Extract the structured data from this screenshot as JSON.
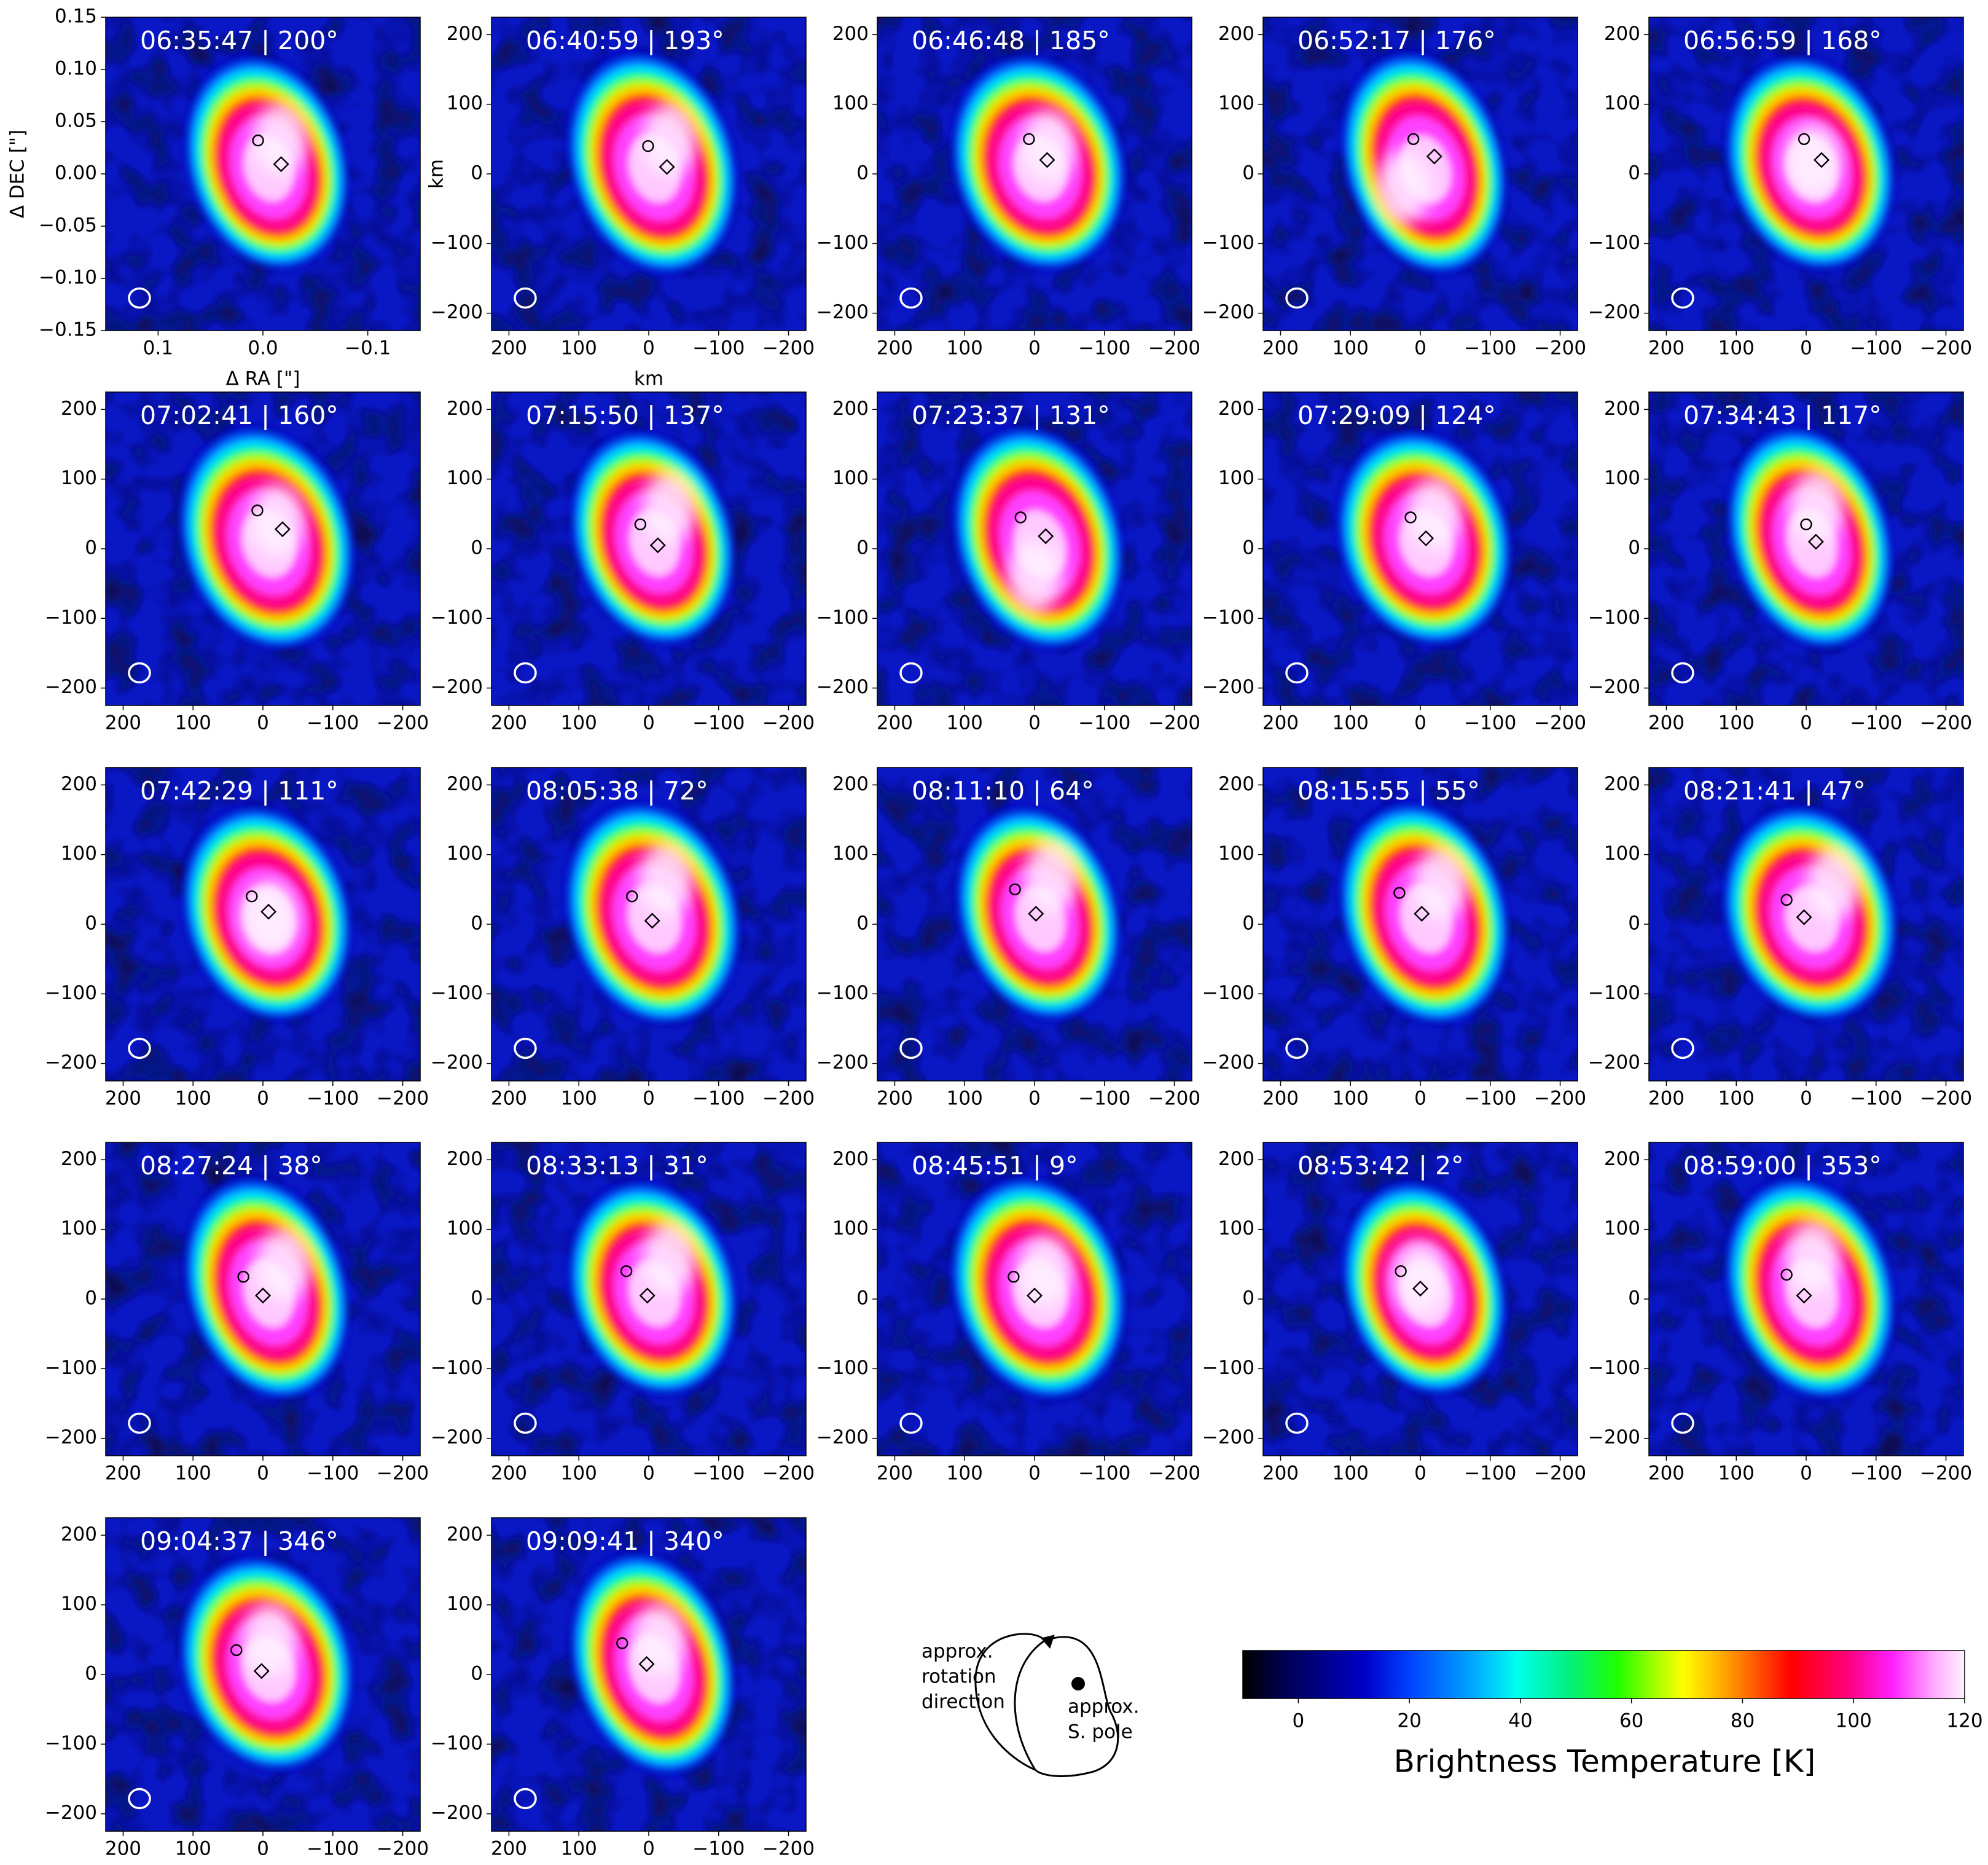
{
  "chart_data": {
    "type": "heatmap",
    "panels": [
      {
        "time": "06:35:47",
        "angle": "200°",
        "circle_km": [
          7,
          48
        ],
        "diamond_km": [
          -26,
          14
        ],
        "hotspot_km": [
          -25,
          50
        ]
      },
      {
        "time": "06:40:59",
        "angle": "193°",
        "circle_km": [
          1,
          40
        ],
        "diamond_km": [
          -26,
          10
        ],
        "hotspot_km": [
          -30,
          50
        ]
      },
      {
        "time": "06:46:48",
        "angle": "185°",
        "circle_km": [
          8,
          50
        ],
        "diamond_km": [
          -18,
          20
        ],
        "hotspot_km": [
          -20,
          40
        ]
      },
      {
        "time": "06:52:17",
        "angle": "176°",
        "circle_km": [
          10,
          50
        ],
        "diamond_km": [
          -20,
          25
        ],
        "hotspot_km": [
          25,
          -20
        ]
      },
      {
        "time": "06:56:59",
        "angle": "168°",
        "circle_km": [
          3,
          50
        ],
        "diamond_km": [
          -22,
          20
        ],
        "hotspot_km": [
          -10,
          20
        ]
      },
      {
        "time": "07:02:41",
        "angle": "160°",
        "circle_km": [
          8,
          55
        ],
        "diamond_km": [
          -28,
          28
        ],
        "hotspot_km": [
          -20,
          40
        ]
      },
      {
        "time": "07:15:50",
        "angle": "137°",
        "circle_km": [
          12,
          35
        ],
        "diamond_km": [
          -13,
          5
        ],
        "hotspot_km": [
          -30,
          60
        ]
      },
      {
        "time": "07:23:37",
        "angle": "131°",
        "circle_km": [
          20,
          45
        ],
        "diamond_km": [
          -16,
          18
        ],
        "hotspot_km": [
          0,
          -40
        ]
      },
      {
        "time": "07:29:09",
        "angle": "124°",
        "circle_km": [
          14,
          45
        ],
        "diamond_km": [
          -8,
          15
        ],
        "hotspot_km": [
          -20,
          50
        ]
      },
      {
        "time": "07:34:43",
        "angle": "117°",
        "circle_km": [
          0,
          35
        ],
        "diamond_km": [
          -14,
          10
        ],
        "hotspot_km": [
          -15,
          60
        ]
      },
      {
        "time": "07:42:29",
        "angle": "111°",
        "circle_km": [
          16,
          40
        ],
        "diamond_km": [
          -8,
          18
        ],
        "hotspot_km": [
          -10,
          10
        ]
      },
      {
        "time": "08:05:38",
        "angle": "72°",
        "circle_km": [
          24,
          40
        ],
        "diamond_km": [
          -5,
          5
        ],
        "hotspot_km": [
          -25,
          65
        ]
      },
      {
        "time": "08:11:10",
        "angle": "64°",
        "circle_km": [
          28,
          50
        ],
        "diamond_km": [
          -2,
          15
        ],
        "hotspot_km": [
          -25,
          70
        ]
      },
      {
        "time": "08:15:55",
        "angle": "55°",
        "circle_km": [
          30,
          45
        ],
        "diamond_km": [
          -2,
          15
        ],
        "hotspot_km": [
          -30,
          60
        ]
      },
      {
        "time": "08:21:41",
        "angle": "47°",
        "circle_km": [
          28,
          35
        ],
        "diamond_km": [
          3,
          10
        ],
        "hotspot_km": [
          -40,
          60
        ]
      },
      {
        "time": "08:27:24",
        "angle": "38°",
        "circle_km": [
          28,
          32
        ],
        "diamond_km": [
          0,
          5
        ],
        "hotspot_km": [
          -30,
          50
        ]
      },
      {
        "time": "08:33:13",
        "angle": "31°",
        "circle_km": [
          32,
          40
        ],
        "diamond_km": [
          2,
          5
        ],
        "hotspot_km": [
          -30,
          60
        ]
      },
      {
        "time": "08:45:51",
        "angle": "9°",
        "circle_km": [
          30,
          32
        ],
        "diamond_km": [
          0,
          5
        ],
        "hotspot_km": [
          -15,
          40
        ]
      },
      {
        "time": "08:53:42",
        "angle": "2°",
        "circle_km": [
          28,
          40
        ],
        "diamond_km": [
          0,
          15
        ],
        "hotspot_km": [
          0,
          30
        ]
      },
      {
        "time": "08:59:00",
        "angle": "353°",
        "circle_km": [
          28,
          35
        ],
        "diamond_km": [
          3,
          5
        ],
        "hotspot_km": [
          -10,
          60
        ]
      },
      {
        "time": "09:04:37",
        "angle": "346°",
        "circle_km": [
          38,
          35
        ],
        "diamond_km": [
          2,
          5
        ],
        "hotspot_km": [
          -10,
          50
        ]
      },
      {
        "time": "09:09:41",
        "angle": "340°",
        "circle_km": [
          38,
          45
        ],
        "diamond_km": [
          3,
          15
        ],
        "hotspot_km": [
          -15,
          50
        ]
      }
    ],
    "first_panel_axes": {
      "xlabel": "Δ RA [\"]",
      "ylabel": "Δ DEC [\"]",
      "x_ticks": [
        "0.1",
        "0.0",
        "−0.1"
      ],
      "y_ticks": [
        "0.15",
        "0.10",
        "0.05",
        "0.00",
        "−0.05",
        "−0.10",
        "−0.15"
      ],
      "xlim": [
        0.15,
        -0.15
      ],
      "ylim": [
        -0.15,
        0.15
      ]
    },
    "km_axes": {
      "xlabel": "km",
      "ylabel": "km",
      "x_ticks": [
        "200",
        "100",
        "0",
        "−100",
        "−200"
      ],
      "y_ticks": [
        "200",
        "100",
        "0",
        "−100",
        "−200"
      ],
      "xlim": [
        225,
        -225
      ],
      "ylim": [
        -225,
        225
      ]
    },
    "schematic": {
      "rotation_label": [
        "approx.",
        "rotation",
        "direction"
      ],
      "pole_label": [
        "approx.",
        "S. pole"
      ]
    },
    "colorbar": {
      "label": "Brightness Temperature [K]",
      "ticks": [
        "0",
        "20",
        "40",
        "60",
        "80",
        "100",
        "120"
      ],
      "range": [
        -10,
        120
      ],
      "tick_values": [
        0,
        20,
        40,
        60,
        80,
        100,
        120
      ],
      "colormap": "gist_ncar-like (black → blue → cyan → green → yellow → red → magenta → white)"
    }
  }
}
